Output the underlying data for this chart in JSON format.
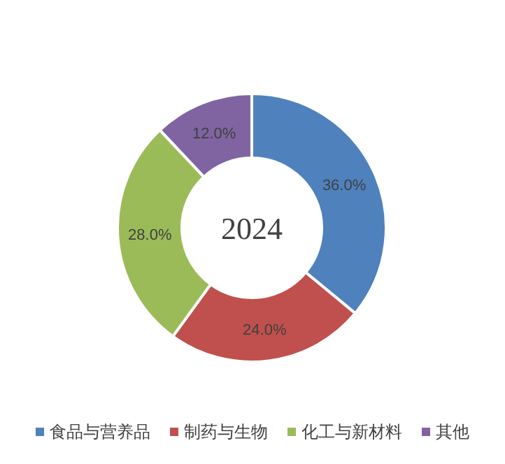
{
  "chart_data": {
    "type": "donut",
    "title": "2024",
    "categories": [
      "食品与营养品",
      "制药与生物",
      "化工与新材料",
      "其他"
    ],
    "values": [
      36.0,
      24.0,
      28.0,
      12.0
    ],
    "colors": [
      "#4f81bd",
      "#c0504d",
      "#9bbb59",
      "#8064a2"
    ],
    "value_labels": [
      "36.0%",
      "24.0%",
      "28.0%",
      "12.0%"
    ],
    "legend": "bottom"
  }
}
